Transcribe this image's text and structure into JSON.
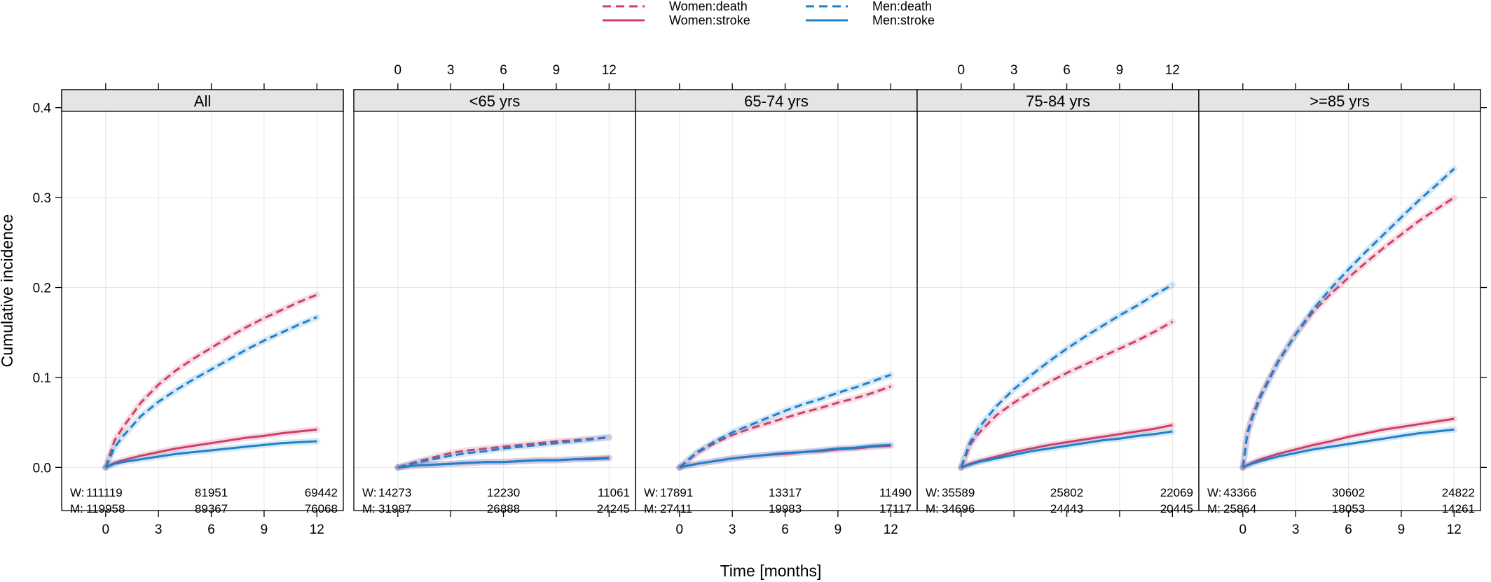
{
  "chart_data": {
    "type": "line",
    "xlabel": "Time [months]",
    "ylabel": "Cumulative incidence",
    "x_ticks": [
      0,
      3,
      6,
      9,
      12
    ],
    "y_ticks": [
      0.0,
      0.1,
      0.2,
      0.3,
      0.4
    ],
    "y_tick_labels": [
      "0.0",
      "0.1",
      "0.2",
      "0.3",
      "0.4"
    ],
    "xlim": [
      -2.5,
      13.5
    ],
    "ylim": [
      -0.048,
      0.42
    ],
    "grid": true,
    "colors": {
      "women": "#cf3f68",
      "men": "#1f80cc"
    },
    "legend": [
      {
        "label": "Women:death",
        "group": "women",
        "line": "dashed"
      },
      {
        "label": "Women:stroke",
        "group": "women",
        "line": "solid"
      },
      {
        "label": "Men:death",
        "group": "men",
        "line": "dashed"
      },
      {
        "label": "Men:stroke",
        "group": "men",
        "line": "solid"
      }
    ],
    "risk_labels": {
      "women": "W:",
      "men": "M:"
    },
    "panels": [
      {
        "title": "All",
        "series": [
          {
            "name": "Women:death",
            "x": [
              0,
              0.5,
              1,
              2,
              3,
              4,
              5,
              6,
              7,
              8,
              9,
              10,
              11,
              12
            ],
            "y": [
              0,
              0.03,
              0.045,
              0.072,
              0.092,
              0.108,
              0.121,
              0.133,
              0.145,
              0.156,
              0.166,
              0.175,
              0.184,
              0.192
            ]
          },
          {
            "name": "Men:death",
            "x": [
              0,
              0.5,
              1,
              2,
              3,
              4,
              5,
              6,
              7,
              8,
              9,
              10,
              11,
              12
            ],
            "y": [
              0,
              0.022,
              0.035,
              0.057,
              0.073,
              0.086,
              0.098,
              0.109,
              0.12,
              0.131,
              0.141,
              0.15,
              0.159,
              0.167
            ]
          },
          {
            "name": "Women:stroke",
            "x": [
              0,
              0.5,
              1,
              2,
              3,
              4,
              5,
              6,
              7,
              8,
              9,
              10,
              11,
              12
            ],
            "y": [
              0,
              0.005,
              0.008,
              0.013,
              0.017,
              0.021,
              0.024,
              0.027,
              0.03,
              0.033,
              0.035,
              0.038,
              0.04,
              0.042
            ]
          },
          {
            "name": "Men:stroke",
            "x": [
              0,
              0.5,
              1,
              2,
              3,
              4,
              5,
              6,
              7,
              8,
              9,
              10,
              11,
              12
            ],
            "y": [
              0,
              0.004,
              0.006,
              0.009,
              0.012,
              0.015,
              0.017,
              0.019,
              0.021,
              0.023,
              0.025,
              0.027,
              0.028,
              0.029
            ]
          }
        ],
        "at_risk": {
          "women": [
            "111119",
            "81951",
            "69442"
          ],
          "men": [
            "119958",
            "89367",
            "76068"
          ]
        }
      },
      {
        "title": "<65 yrs",
        "series": [
          {
            "name": "Women:death",
            "x": [
              0,
              1,
              2,
              3,
              4,
              5,
              6,
              7,
              8,
              9,
              10,
              11,
              12
            ],
            "y": [
              0,
              0.006,
              0.011,
              0.016,
              0.019,
              0.021,
              0.023,
              0.025,
              0.027,
              0.029,
              0.03,
              0.032,
              0.033
            ]
          },
          {
            "name": "Men:death",
            "x": [
              0,
              1,
              2,
              3,
              4,
              5,
              6,
              7,
              8,
              9,
              10,
              11,
              12
            ],
            "y": [
              0,
              0.005,
              0.009,
              0.013,
              0.016,
              0.018,
              0.021,
              0.023,
              0.025,
              0.027,
              0.029,
              0.031,
              0.034
            ]
          },
          {
            "name": "Women:stroke",
            "x": [
              0,
              1,
              2,
              3,
              4,
              5,
              6,
              7,
              8,
              9,
              10,
              11,
              12
            ],
            "y": [
              0,
              0.002,
              0.003,
              0.004,
              0.005,
              0.006,
              0.006,
              0.007,
              0.008,
              0.008,
              0.009,
              0.01,
              0.011
            ]
          },
          {
            "name": "Men:stroke",
            "x": [
              0,
              1,
              2,
              3,
              4,
              5,
              6,
              7,
              8,
              9,
              10,
              11,
              12
            ],
            "y": [
              0,
              0.002,
              0.003,
              0.004,
              0.005,
              0.006,
              0.006,
              0.007,
              0.008,
              0.008,
              0.009,
              0.009,
              0.01
            ]
          }
        ],
        "at_risk": {
          "women": [
            "14273",
            "12230",
            "11061"
          ],
          "men": [
            "31987",
            "26888",
            "24245"
          ]
        }
      },
      {
        "title": "65-74 yrs",
        "series": [
          {
            "name": "Women:death",
            "x": [
              0,
              1,
              2,
              3,
              4,
              5,
              6,
              7,
              8,
              9,
              10,
              11,
              12
            ],
            "y": [
              0,
              0.016,
              0.027,
              0.036,
              0.043,
              0.049,
              0.055,
              0.061,
              0.066,
              0.072,
              0.077,
              0.083,
              0.09
            ]
          },
          {
            "name": "Men:death",
            "x": [
              0,
              1,
              2,
              3,
              4,
              5,
              6,
              7,
              8,
              9,
              10,
              11,
              12
            ],
            "y": [
              0,
              0.017,
              0.029,
              0.039,
              0.047,
              0.055,
              0.063,
              0.07,
              0.076,
              0.083,
              0.089,
              0.096,
              0.103
            ]
          },
          {
            "name": "Women:stroke",
            "x": [
              0,
              1,
              2,
              3,
              4,
              5,
              6,
              7,
              8,
              9,
              10,
              11,
              12
            ],
            "y": [
              0,
              0.004,
              0.007,
              0.01,
              0.012,
              0.014,
              0.015,
              0.017,
              0.018,
              0.02,
              0.021,
              0.023,
              0.024
            ]
          },
          {
            "name": "Men:stroke",
            "x": [
              0,
              1,
              2,
              3,
              4,
              5,
              6,
              7,
              8,
              9,
              10,
              11,
              12
            ],
            "y": [
              0,
              0.004,
              0.007,
              0.01,
              0.012,
              0.014,
              0.016,
              0.017,
              0.019,
              0.021,
              0.022,
              0.024,
              0.025
            ]
          }
        ],
        "at_risk": {
          "women": [
            "17891",
            "13317",
            "11490"
          ],
          "men": [
            "27411",
            "19983",
            "17117"
          ]
        }
      },
      {
        "title": "75-84 yrs",
        "series": [
          {
            "name": "Women:death",
            "x": [
              0,
              0.5,
              1,
              2,
              3,
              4,
              5,
              6,
              7,
              8,
              9,
              10,
              11,
              12
            ],
            "y": [
              0,
              0.025,
              0.038,
              0.058,
              0.072,
              0.084,
              0.095,
              0.105,
              0.114,
              0.123,
              0.132,
              0.141,
              0.151,
              0.162
            ]
          },
          {
            "name": "Men:death",
            "x": [
              0,
              0.5,
              1,
              2,
              3,
              4,
              5,
              6,
              7,
              8,
              9,
              10,
              11,
              12
            ],
            "y": [
              0,
              0.028,
              0.044,
              0.068,
              0.087,
              0.103,
              0.118,
              0.132,
              0.145,
              0.157,
              0.169,
              0.18,
              0.192,
              0.203
            ]
          },
          {
            "name": "Women:stroke",
            "x": [
              0,
              0.5,
              1,
              2,
              3,
              4,
              5,
              6,
              7,
              8,
              9,
              10,
              11,
              12
            ],
            "y": [
              0,
              0.004,
              0.007,
              0.012,
              0.017,
              0.021,
              0.025,
              0.028,
              0.031,
              0.034,
              0.037,
              0.04,
              0.043,
              0.047
            ]
          },
          {
            "name": "Men:stroke",
            "x": [
              0,
              0.5,
              1,
              2,
              3,
              4,
              5,
              6,
              7,
              8,
              9,
              10,
              11,
              12
            ],
            "y": [
              0,
              0.003,
              0.006,
              0.01,
              0.014,
              0.018,
              0.021,
              0.024,
              0.027,
              0.03,
              0.032,
              0.035,
              0.037,
              0.04
            ]
          }
        ],
        "at_risk": {
          "women": [
            "35589",
            "25802",
            "22069"
          ],
          "men": [
            "34696",
            "24443",
            "20445"
          ]
        }
      },
      {
        "title": ">=85 yrs",
        "series": [
          {
            "name": "Women:death",
            "x": [
              0,
              0.25,
              0.5,
              1,
              2,
              3,
              4,
              5,
              6,
              7,
              8,
              9,
              10,
              11,
              12
            ],
            "y": [
              0,
              0.038,
              0.055,
              0.08,
              0.118,
              0.148,
              0.173,
              0.193,
              0.211,
              0.228,
              0.244,
              0.259,
              0.274,
              0.287,
              0.3
            ]
          },
          {
            "name": "Men:death",
            "x": [
              0,
              0.25,
              0.5,
              1,
              2,
              3,
              4,
              5,
              6,
              7,
              8,
              9,
              10,
              11,
              12
            ],
            "y": [
              0,
              0.036,
              0.053,
              0.078,
              0.117,
              0.148,
              0.176,
              0.199,
              0.22,
              0.24,
              0.259,
              0.278,
              0.297,
              0.314,
              0.332
            ]
          },
          {
            "name": "Women:stroke",
            "x": [
              0,
              0.5,
              1,
              2,
              3,
              4,
              5,
              6,
              7,
              8,
              9,
              10,
              11,
              12
            ],
            "y": [
              0,
              0.005,
              0.009,
              0.015,
              0.02,
              0.025,
              0.029,
              0.034,
              0.038,
              0.042,
              0.045,
              0.048,
              0.051,
              0.054
            ]
          },
          {
            "name": "Men:stroke",
            "x": [
              0,
              0.5,
              1,
              2,
              3,
              4,
              5,
              6,
              7,
              8,
              9,
              10,
              11,
              12
            ],
            "y": [
              0,
              0.004,
              0.007,
              0.012,
              0.016,
              0.02,
              0.023,
              0.026,
              0.029,
              0.032,
              0.035,
              0.038,
              0.04,
              0.042
            ]
          }
        ],
        "at_risk": {
          "women": [
            "43366",
            "30602",
            "24822"
          ],
          "men": [
            "25864",
            "18053",
            "14261"
          ]
        }
      }
    ]
  }
}
